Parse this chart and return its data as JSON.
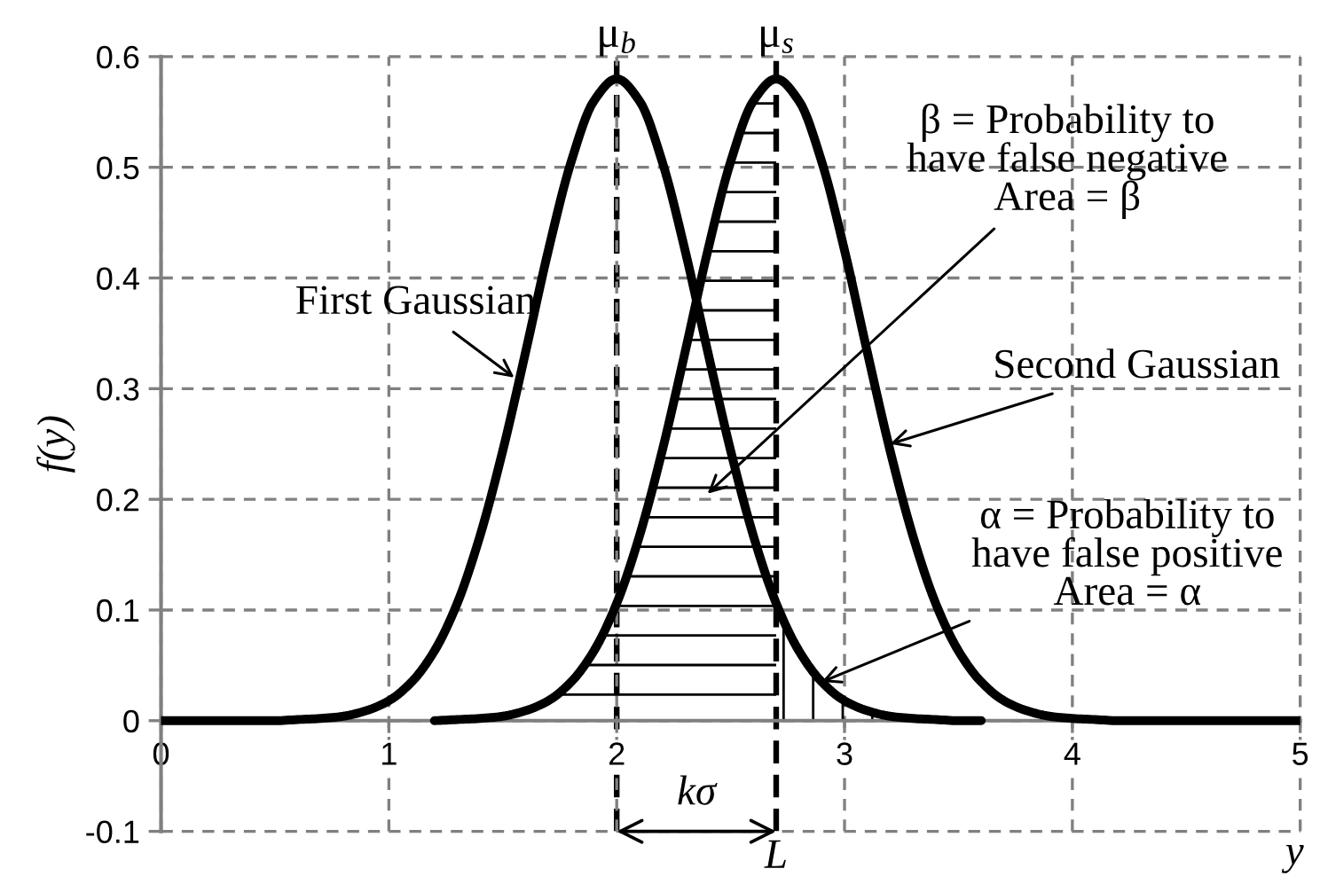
{
  "chart_data": {
    "type": "line",
    "xlabel": "y",
    "ylabel": "f(y)",
    "series": [
      {
        "type": "line",
        "color": "#000000",
        "x": [
          0,
          0.1,
          0.2,
          0.3,
          0.4,
          0.5,
          0.6,
          0.7,
          0.8,
          0.9,
          1,
          1.1,
          1.2,
          1.3,
          1.4,
          1.5,
          1.6,
          1.7,
          1.8,
          1.9,
          2,
          2.1,
          2.2,
          2.3,
          2.4,
          2.5,
          2.6,
          2.7,
          2.8,
          2.9,
          3,
          3.1,
          3.2,
          3.3,
          3.4,
          3.5,
          3.6
        ],
        "values": [
          0,
          0,
          0,
          0,
          0,
          0,
          0.001,
          0.002,
          0.004,
          0.009,
          0.018,
          0.035,
          0.063,
          0.106,
          0.167,
          0.244,
          0.333,
          0.425,
          0.505,
          0.56,
          0.58,
          0.56,
          0.505,
          0.425,
          0.333,
          0.244,
          0.167,
          0.106,
          0.063,
          0.035,
          0.018,
          0.009,
          0.004,
          0.002,
          0.001,
          0,
          0
        ]
      },
      {
        "type": "line",
        "color": "#000000",
        "x": [
          1.2,
          1.3,
          1.4,
          1.5,
          1.6,
          1.7,
          1.8,
          1.9,
          2,
          2.1,
          2.2,
          2.3,
          2.4,
          2.5,
          2.6,
          2.7,
          2.8,
          2.9,
          3,
          3.1,
          3.2,
          3.3,
          3.4,
          3.5,
          3.6,
          3.7,
          3.8,
          3.9,
          4,
          4.1,
          4.2,
          4.3,
          4.4,
          4.5,
          4.6,
          4.7,
          4.8,
          4.9,
          5
        ],
        "values": [
          0,
          0.001,
          0.002,
          0.004,
          0.009,
          0.018,
          0.035,
          0.063,
          0.106,
          0.167,
          0.244,
          0.333,
          0.425,
          0.505,
          0.56,
          0.58,
          0.56,
          0.505,
          0.425,
          0.333,
          0.244,
          0.167,
          0.106,
          0.063,
          0.035,
          0.018,
          0.009,
          0.004,
          0.002,
          0.001,
          0,
          0,
          0,
          0,
          0,
          0,
          0,
          0,
          0
        ]
      },
      {
        "type": "area",
        "color": "#000000",
        "x": [
          1.3,
          1.4,
          1.5,
          1.6,
          1.7,
          1.8,
          1.9,
          2,
          2.1,
          2.2,
          2.3,
          2.4,
          2.5,
          2.6,
          2.7
        ],
        "values": [
          0.001,
          0.002,
          0.004,
          0.009,
          0.018,
          0.035,
          0.063,
          0.106,
          0.167,
          0.244,
          0.333,
          0.425,
          0.505,
          0.56,
          0.58
        ]
      },
      {
        "type": "area",
        "color": "#000000",
        "x": [
          2.7,
          2.8,
          2.9,
          3,
          3.1,
          3.2,
          3.3,
          3.4
        ],
        "values": [
          0.106,
          0.063,
          0.035,
          0.018,
          0.009,
          0.004,
          0.002,
          0.001
        ]
      }
    ],
    "xlim": [
      0,
      5
    ],
    "ylim": [
      -0.1,
      0.6
    ],
    "xticks": [
      0,
      1,
      2,
      3,
      4,
      5
    ],
    "yticks": [
      -0.1,
      0,
      0.1,
      0.2,
      0.3,
      0.4,
      0.5,
      0.6
    ],
    "grid": true,
    "ref_lines": [
      {
        "axis": "x",
        "value": 2,
        "label": "μ$_{b}$",
        "color": "#000000",
        "line_style": "dashed"
      },
      {
        "axis": "x",
        "value": 2.7,
        "label": "μ$_{s}$",
        "color": "#000000",
        "line_style": "dashed"
      }
    ],
    "annotations": [
      {
        "text": "First Gaussian",
        "x": 1.55,
        "y": 0.31
      },
      "β = Probability to\nhave false negative\nArea = β",
      {
        "text": "Second Gaussian",
        "x": 3.2,
        "y": 0.25
      },
      {
        "text": "α = Probability to\nhave false positive\nArea = α",
        "x": 2.9,
        "y": 0.035
      },
      "kσ",
      {
        "text": "L",
        "x": 2.7,
        "y": -0.1
      }
    ]
  }
}
